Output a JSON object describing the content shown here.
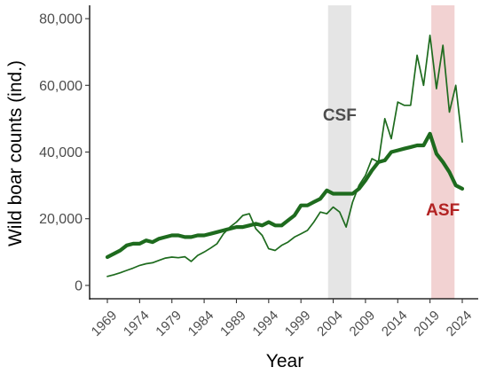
{
  "chart_data": {
    "type": "line",
    "xlabel": "Year",
    "ylabel": "Wild boar counts (ind.)",
    "xlim": [
      1969,
      2024
    ],
    "ylim": [
      0,
      80000
    ],
    "x_ticks": [
      "1969",
      "1974",
      "1979",
      "1984",
      "1989",
      "1994",
      "1999",
      "2004",
      "2009",
      "2014",
      "2019",
      "2024"
    ],
    "y_ticks": [
      "0",
      "20,000",
      "40,000",
      "60,000",
      "80,000"
    ],
    "grid": false,
    "legend": "none",
    "periods": [
      {
        "label": "CSF",
        "start": 2003.2,
        "end": 2006.8,
        "color": "#e5e5e5",
        "label_color": "#4d4d4d"
      },
      {
        "label": "ASF",
        "start": 2019.2,
        "end": 2022.8,
        "color": "#f2d2d2",
        "label_color": "#b22222"
      }
    ],
    "series": [
      {
        "color": "#1e6b1e",
        "style": "thick",
        "x": [
          1969,
          1970,
          1971,
          1972,
          1973,
          1974,
          1975,
          1976,
          1977,
          1978,
          1979,
          1980,
          1981,
          1982,
          1983,
          1984,
          1985,
          1986,
          1987,
          1988,
          1989,
          1990,
          1991,
          1992,
          1993,
          1994,
          1995,
          1996,
          1997,
          1998,
          1999,
          2000,
          2001,
          2002,
          2003,
          2004,
          2005,
          2006,
          2007,
          2008,
          2009,
          2010,
          2011,
          2012,
          2013,
          2014,
          2015,
          2016,
          2017,
          2018,
          2019,
          2020,
          2021,
          2022,
          2023,
          2024
        ],
        "values": [
          8500,
          9500,
          10500,
          12000,
          12500,
          12500,
          13500,
          13000,
          14000,
          14500,
          15000,
          15000,
          14500,
          14500,
          15000,
          15000,
          15500,
          16000,
          16500,
          17000,
          17500,
          17500,
          18000,
          18500,
          18000,
          19000,
          18000,
          18000,
          19500,
          21000,
          24000,
          24000,
          25000,
          26000,
          28500,
          27500,
          27500,
          27500,
          27500,
          29000,
          31500,
          34500,
          37000,
          37500,
          40000,
          40500,
          41000,
          41500,
          42000,
          42000,
          45500,
          39500,
          37000,
          34000,
          30000,
          29000
        ]
      },
      {
        "color": "#1e6b1e",
        "style": "thin",
        "x": [
          1969,
          1970,
          1971,
          1972,
          1973,
          1974,
          1975,
          1976,
          1977,
          1978,
          1979,
          1980,
          1981,
          1982,
          1983,
          1984,
          1985,
          1986,
          1987,
          1988,
          1989,
          1990,
          1991,
          1992,
          1993,
          1994,
          1995,
          1996,
          1997,
          1998,
          1999,
          2000,
          2001,
          2002,
          2003,
          2004,
          2005,
          2006,
          2007,
          2008,
          2009,
          2010,
          2011,
          2012,
          2013,
          2014,
          2015,
          2016,
          2017,
          2018,
          2019,
          2020,
          2021,
          2022,
          2023,
          2024
        ],
        "values": [
          2700,
          3200,
          3800,
          4500,
          5200,
          6000,
          6500,
          6800,
          7500,
          8200,
          8500,
          8300,
          8600,
          7200,
          9000,
          10000,
          11200,
          12500,
          15500,
          17500,
          19000,
          21000,
          21500,
          17000,
          15000,
          11000,
          10500,
          12000,
          13000,
          14500,
          15500,
          16500,
          19000,
          22000,
          21500,
          23500,
          22000,
          17500,
          25000,
          30000,
          33000,
          38000,
          37000,
          50000,
          44000,
          55000,
          54000,
          54000,
          69000,
          60000,
          75000,
          59000,
          72000,
          52000,
          60000,
          43000
        ]
      }
    ]
  }
}
